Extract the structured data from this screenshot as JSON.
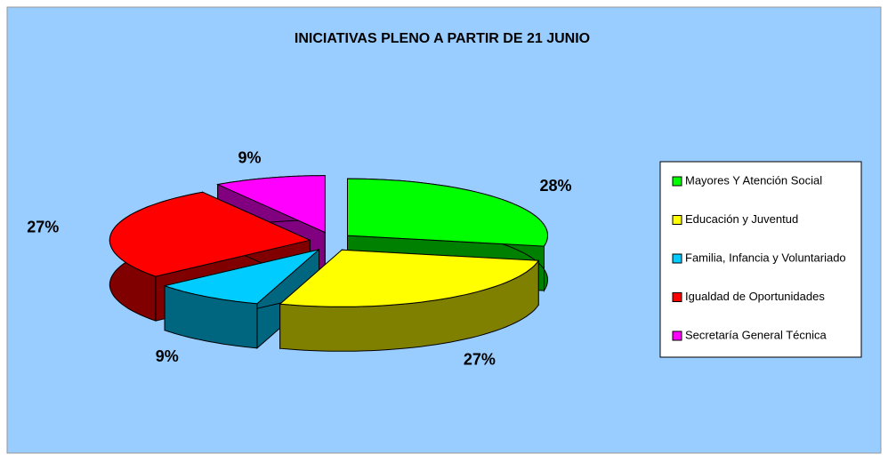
{
  "chart_data": {
    "type": "pie",
    "title": "INICIATIVAS PLENO A PARTIR DE 21 JUNIO",
    "categories": [
      "Mayores Y Atención Social",
      "Educación y Juventud",
      "Familia, Infancia y Voluntariado",
      "Igualdad de Oportunidades",
      "Secretaría General Técnica"
    ],
    "values": [
      28,
      27,
      9,
      27,
      9
    ],
    "value_labels": [
      "28%",
      "27%",
      "9%",
      "27%",
      "9%"
    ],
    "colors": [
      "#00ff00",
      "#ffff00",
      "#00ccff",
      "#ff0000",
      "#ff00ff"
    ],
    "side_colors": [
      "#008000",
      "#808000",
      "#006680",
      "#800000",
      "#800080"
    ],
    "legend": "right"
  }
}
